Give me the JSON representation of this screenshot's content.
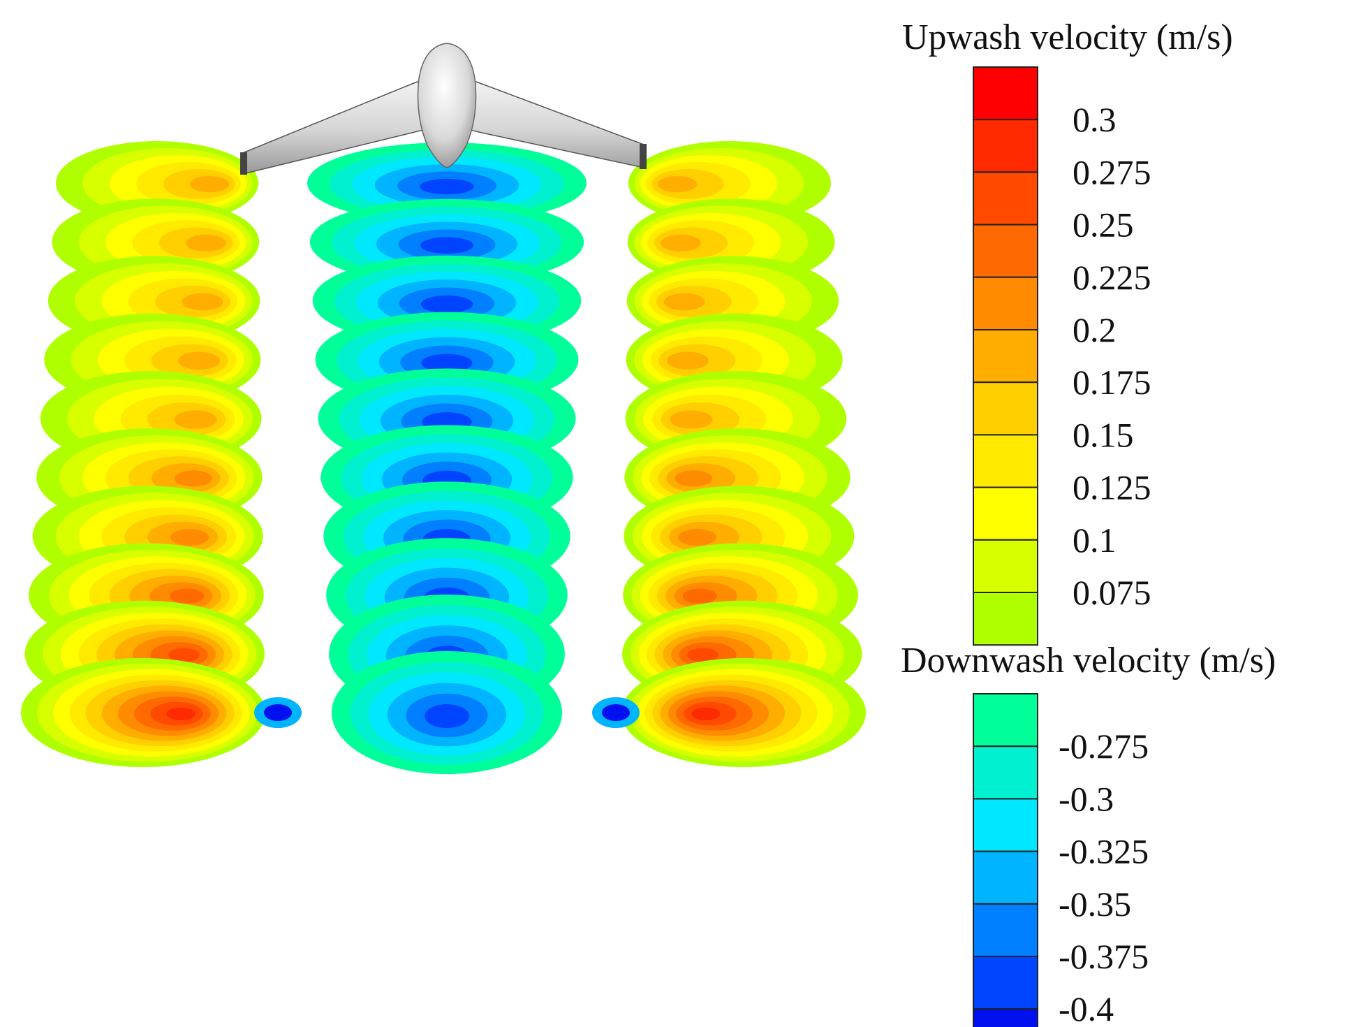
{
  "chart_data": {
    "type": "contour",
    "description_visible": "",
    "legends": [
      {
        "title": "Upwash velocity (m/s)",
        "levels": [
          0.3,
          0.275,
          0.25,
          0.225,
          0.2,
          0.175,
          0.15,
          0.125,
          0.1,
          0.075
        ],
        "tick_labels": [
          "0.3",
          "0.275",
          "0.25",
          "0.225",
          "0.2",
          "0.175",
          "0.15",
          "0.125",
          "0.1",
          "0.075"
        ],
        "band_colors": [
          "#ff0000",
          "#ff2a00",
          "#ff4a00",
          "#ff6a00",
          "#ff8c00",
          "#ffae00",
          "#ffcf00",
          "#ffea00",
          "#ffff00",
          "#d8ff00",
          "#b0ff00"
        ]
      },
      {
        "title": "Downwash velocity (m/s)",
        "levels": [
          -0.275,
          -0.3,
          -0.325,
          -0.35,
          -0.375,
          -0.4
        ],
        "tick_labels": [
          "-0.275",
          "-0.3",
          "-0.325",
          "-0.35",
          "-0.375",
          "-0.4"
        ],
        "band_colors": [
          "#00ff99",
          "#00f0d0",
          "#00e8ff",
          "#00b4ff",
          "#0080ff",
          "#0044ff",
          "#0010ee"
        ]
      }
    ],
    "wake": {
      "slices": 10,
      "side_peak_upwash": [
        0.3,
        0.275,
        0.25,
        0.225,
        0.225,
        0.2,
        0.2,
        0.2,
        0.2,
        0.2
      ],
      "center_peak_downwash": [
        -0.4,
        -0.4,
        -0.4,
        -0.4,
        -0.4,
        -0.4,
        -0.4,
        -0.4,
        -0.4,
        -0.4
      ]
    }
  }
}
